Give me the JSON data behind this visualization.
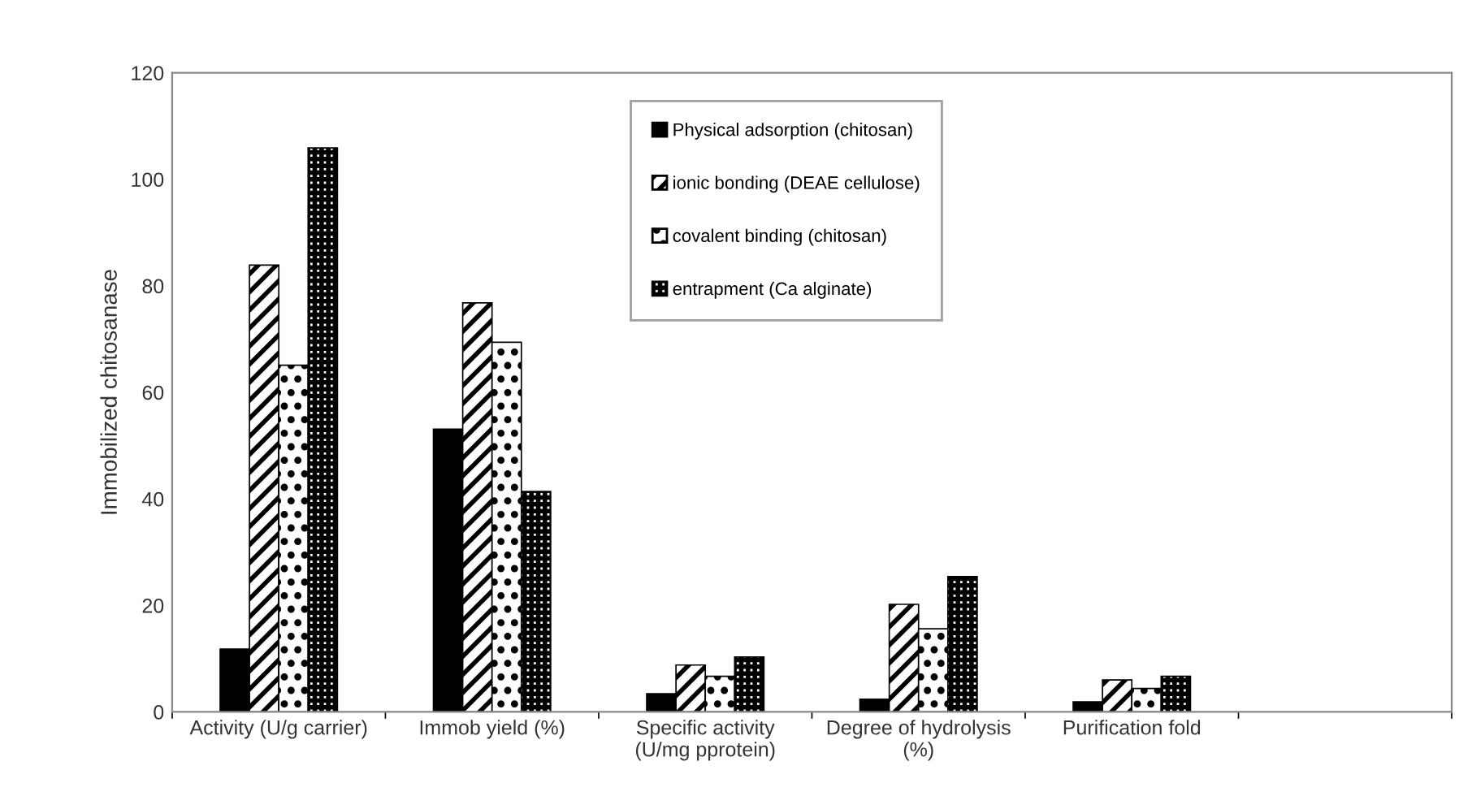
{
  "chart_data": {
    "type": "bar",
    "ylabel": "Immobilized chitosanase",
    "categories": [
      "Activity (U/g carrier)",
      "Immob yield (%)",
      "Specific activity\n(U/mg pprotein)",
      "Degree of hydrolysis\n(%)",
      "Purification fold",
      null
    ],
    "series": [
      {
        "name": "Physical adsorption (chitosan)",
        "color": "#000000",
        "values": [
          11.8,
          53.1,
          3.4,
          2.4,
          1.9,
          null
        ]
      },
      {
        "name": "ionic bonding (DEAE cellulose)",
        "color": "#000000",
        "values": [
          83.9,
          76.8,
          8.8,
          20.2,
          6.0,
          null
        ]
      },
      {
        "name": "covalent binding (chitosan)",
        "color": "#000000",
        "values": [
          65.1,
          69.4,
          6.7,
          15.6,
          4.4,
          null
        ]
      },
      {
        "name": "entrapment (Ca alginate)",
        "color": "#000000",
        "values": [
          105.9,
          41.4,
          10.3,
          25.4,
          6.7,
          null
        ]
      }
    ],
    "ylim": [
      0,
      120
    ],
    "yticks": [
      0,
      20,
      40,
      60,
      80,
      100,
      120
    ],
    "grid": false,
    "legend": "top"
  }
}
